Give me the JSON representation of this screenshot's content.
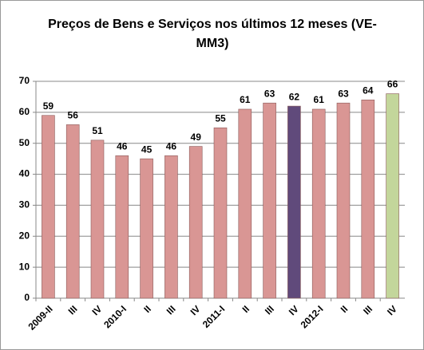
{
  "chart_data": {
    "type": "bar",
    "title": "Preços de Bens e Serviços nos últimos 12 meses (VE-MM3)",
    "categories": [
      "2009-II",
      "III",
      "IV",
      "2010-I",
      "II",
      "III",
      "IV",
      "2011-I",
      "II",
      "III",
      "IV",
      "2012-I",
      "II",
      "III",
      "IV"
    ],
    "values": [
      59,
      56,
      51,
      46,
      45,
      46,
      49,
      55,
      61,
      63,
      62,
      61,
      63,
      64,
      66
    ],
    "colors": [
      "#d99694",
      "#d99694",
      "#d99694",
      "#d99694",
      "#d99694",
      "#d99694",
      "#d99694",
      "#d99694",
      "#d99694",
      "#d99694",
      "#604a7b",
      "#d99694",
      "#d99694",
      "#d99694",
      "#c3d69b"
    ],
    "ylim": [
      0,
      70
    ],
    "yticks": [
      0,
      10,
      20,
      30,
      40,
      50,
      60,
      70
    ],
    "grid": true
  }
}
